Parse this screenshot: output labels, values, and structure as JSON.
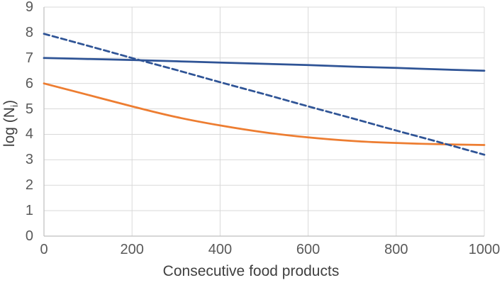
{
  "axes": {
    "x_title": "Consecutive food products",
    "y_title_prefix": "log (N",
    "y_title_sub": "i",
    "y_title_suffix": ")"
  },
  "colors": {
    "blue_line": "#2F5496",
    "orange_line": "#ED7D31",
    "gridline": "#D9D9D9",
    "axis_line": "#BFBFBF",
    "tick_text": "#595959",
    "title_text": "#404040"
  },
  "chart_data": {
    "type": "line",
    "title": "",
    "xlabel": "Consecutive food products",
    "ylabel": "log (Nᵢ)",
    "xlim": [
      0,
      1000
    ],
    "ylim": [
      0,
      9
    ],
    "x_ticks": [
      0,
      200,
      400,
      600,
      800,
      1000
    ],
    "y_ticks": [
      0,
      1,
      2,
      3,
      4,
      5,
      6,
      7,
      8,
      9
    ],
    "grid": true,
    "legend_position": "none",
    "x": [
      0,
      100,
      200,
      300,
      400,
      500,
      600,
      700,
      800,
      900,
      1000
    ],
    "series": [
      {
        "name": "blue-solid",
        "color": "#2F5496",
        "dash": "solid",
        "values": [
          7.0,
          6.96,
          6.92,
          6.87,
          6.82,
          6.77,
          6.72,
          6.66,
          6.61,
          6.55,
          6.5
        ]
      },
      {
        "name": "orange-solid",
        "color": "#ED7D31",
        "dash": "solid",
        "values": [
          6.0,
          5.55,
          5.1,
          4.68,
          4.35,
          4.08,
          3.88,
          3.74,
          3.66,
          3.61,
          3.58
        ]
      },
      {
        "name": "blue-dashed",
        "color": "#2F5496",
        "dash": "dashed",
        "values": [
          7.95,
          7.48,
          7.0,
          6.53,
          6.05,
          5.58,
          5.1,
          4.63,
          4.15,
          3.68,
          3.2
        ]
      }
    ]
  }
}
